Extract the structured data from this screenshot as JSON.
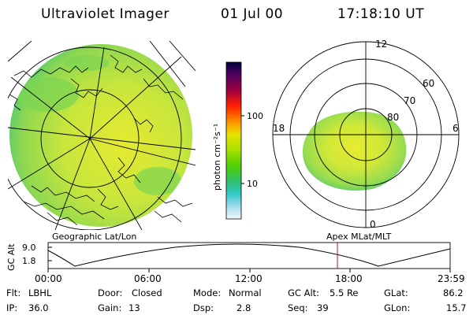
{
  "header": {
    "instrument": "Ultraviolet Imager",
    "date": "01 Jul 00",
    "time": "17:18:10 UT"
  },
  "geo_panel": {
    "caption": "Geographic Lat/Lon"
  },
  "apex_panel": {
    "caption": "Apex MLat/MLT",
    "mlt_labels": [
      "12",
      "18",
      "6",
      "0"
    ],
    "mlat_labels": [
      "60",
      "70",
      "80"
    ]
  },
  "colorbar": {
    "unit_label": "photon cm⁻²s⁻¹",
    "ticks": [
      "100",
      "10"
    ],
    "colors": [
      "#000040",
      "#400060",
      "#800070",
      "#c00030",
      "#ff2000",
      "#ff8000",
      "#ffc000",
      "#e0e000",
      "#a0e000",
      "#50d000",
      "#30c060",
      "#30c8c8",
      "#80d8e8",
      "#c0e8f0",
      "#f0f4f8"
    ]
  },
  "altitude_plot": {
    "ylabel": "GC Alt",
    "yticks": [
      "9.0",
      "1.8"
    ],
    "xticks": [
      "00:00",
      "06:00",
      "12:00",
      "18:00",
      "23:59"
    ],
    "current_time_marker": "17:18"
  },
  "status": {
    "filter_label": "Flt:",
    "filter_value": "LBHL",
    "door_label": "Door:",
    "door_value": "Closed",
    "mode_label": "Mode:",
    "mode_value": "Normal",
    "gcalt_label": "GC Alt:",
    "gcalt_value": "5.5 Re",
    "glat_label": "GLat:",
    "glat_value": "86.2",
    "ip_label": "IP:",
    "ip_value": "36.0",
    "gain_label": "Gain:",
    "gain_value": "13",
    "dsp_label": "Dsp:",
    "dsp_value": "2.8",
    "seq_label": "Seq:",
    "seq_value": "39",
    "glon_label": "GLon:",
    "glon_value": "15.7"
  }
}
